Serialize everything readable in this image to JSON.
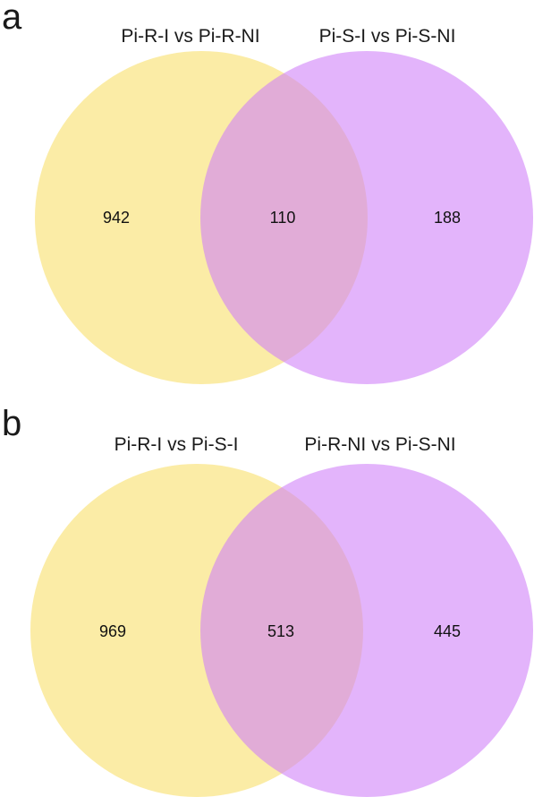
{
  "panels": [
    {
      "letter": "a",
      "left_set": "Pi-R-I vs Pi-R-NI",
      "right_set": "Pi-S-I vs Pi-S-NI",
      "left_only": "942",
      "overlap": "110",
      "right_only": "188"
    },
    {
      "letter": "b",
      "left_set": "Pi-R-I vs Pi-S-I",
      "right_set": "Pi-R-NI vs Pi-S-NI",
      "left_only": "969",
      "overlap": "513",
      "right_only": "445"
    }
  ],
  "colors": {
    "left_circle": "#f9df6b",
    "right_circle": "#d182f9",
    "circle_opacity": "0.6",
    "text": "#111111",
    "background": "#ffffff"
  }
}
